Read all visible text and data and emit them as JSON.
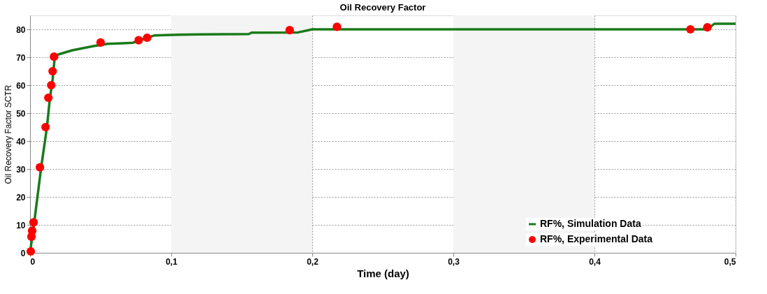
{
  "chart_data": {
    "type": "line",
    "title": "Oil Recovery Factor",
    "xlabel": "Time (day)",
    "ylabel": "Oil Recovery Factor SCTR",
    "xlim": [
      0,
      0.5
    ],
    "xticks": [
      0,
      {
        "value": 0.1,
        "label": "0,1"
      },
      {
        "value": 0.2,
        "label": "0,2"
      },
      {
        "value": 0.3,
        "label": "0,3"
      },
      {
        "value": 0.4,
        "label": "0,4"
      },
      {
        "value": 0.5,
        "label": "0,5"
      }
    ],
    "ylim": [
      0,
      85
    ],
    "yticks": [
      0,
      10,
      20,
      30,
      40,
      50,
      60,
      70,
      80
    ],
    "grid": true,
    "legend": "bottom right",
    "bands": [
      {
        "axis": "x",
        "from": 0.1,
        "to": 0.2,
        "color": "#f4f4f4"
      },
      {
        "axis": "x",
        "from": 0.3,
        "to": 0.4,
        "color": "#f4f4f4"
      }
    ],
    "series": [
      {
        "name": "RF%, Simulation Data",
        "type": "line",
        "color": "#1a7a1a",
        "marker": "none",
        "line_style": "solid",
        "x": [
          0,
          0.003,
          0.008,
          0.012,
          0.014,
          0.016,
          0.0175,
          0.02,
          0.03,
          0.045,
          0.055,
          0.065,
          0.073,
          0.08,
          0.088,
          0.1,
          0.12,
          0.155,
          0.157,
          0.19,
          0.2,
          0.48,
          0.485,
          0.5
        ],
        "values": [
          0,
          11,
          31,
          45,
          55,
          62,
          70,
          71,
          72.5,
          74,
          74.8,
          75,
          75.2,
          76.5,
          77.8,
          78,
          78.2,
          78.3,
          78.8,
          78.9,
          80,
          80,
          82,
          82
        ]
      },
      {
        "name": "RF%, Experimental Data",
        "type": "scatter",
        "color": "#ff0000",
        "marker": "circle",
        "x": [
          0.0005,
          0.001,
          0.0015,
          0.0025,
          0.007,
          0.011,
          0.013,
          0.015,
          0.016,
          0.017,
          0.05,
          0.077,
          0.083,
          0.184,
          0.2175,
          0.468,
          0.48
        ],
        "values": [
          0.5,
          5.8,
          7.9,
          10.9,
          30.6,
          45,
          55.5,
          60,
          65,
          70.2,
          75.3,
          76.1,
          77,
          79.7,
          80.9,
          80,
          80.7
        ]
      }
    ]
  }
}
